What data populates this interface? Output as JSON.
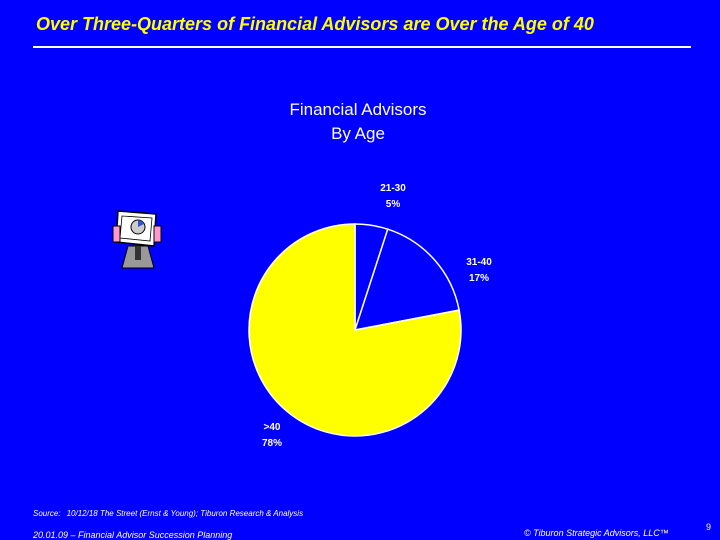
{
  "slide": {
    "headline": "Over Three-Quarters of Financial Advisors are Over the Age of 40",
    "source_label": "Source:",
    "source_text": "10/12/18 The Street (Ernst & Young); Tiburon Research & Analysis",
    "footer_left": "20.01.09 – Financial Advisor Succession Planning",
    "footer_right": "© Tiburon Strategic Advisors, LLC™",
    "page_number": "9"
  },
  "colors": {
    "background": "#0000FF",
    "headline": "#FFFF00",
    "text": "#FFFFFF",
    "slice_21_30": "#0000FF",
    "slice_31_40": "#0000FF",
    "slice_over_40": "#FFFF00"
  },
  "icons": {
    "mini_chart": "person-holding-chart-icon"
  },
  "chart_data": {
    "type": "pie",
    "title_lines": [
      "Financial Advisors",
      "By Age"
    ],
    "slices": [
      {
        "label": "21-30",
        "value": 5,
        "value_label": "5%",
        "color": "#0000FF"
      },
      {
        "label": "31-40",
        "value": 17,
        "value_label": "17%",
        "color": "#0000FF"
      },
      {
        "label": ">40",
        "value": 78,
        "value_label": "78%",
        "color": "#FFFF00"
      }
    ],
    "start_angle_deg": 0,
    "direction": "clockwise",
    "legend": "none"
  }
}
